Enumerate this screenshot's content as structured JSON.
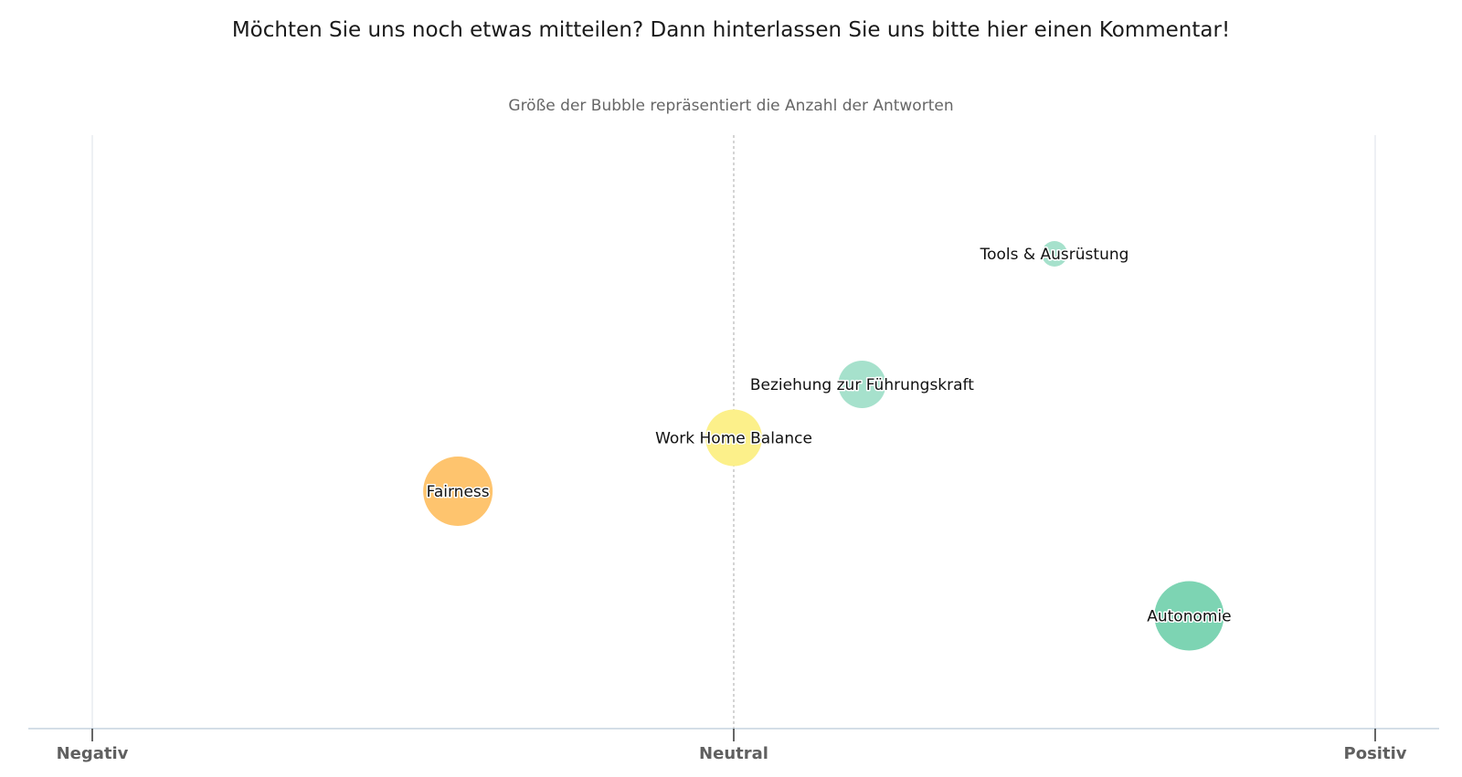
{
  "title": "Möchten Sie uns noch etwas mitteilen? Dann hinterlassen Sie uns bitte hier einen Kommentar!",
  "subtitle": "Größe der Bubble repräsentiert die Anzahl der Antworten",
  "chart_data": {
    "type": "scatter",
    "x_ticks": [
      "Negativ",
      "Neutral",
      "Positiv"
    ],
    "xlim": [
      -1,
      1
    ],
    "ylim": [
      0,
      1
    ],
    "grid": false,
    "points": [
      {
        "label": "Tools & Ausrüstung",
        "x": 0.5,
        "y": 0.8,
        "size": 1,
        "color": "#a6e1cc"
      },
      {
        "label": "Beziehung zur Führungskraft",
        "x": 0.2,
        "y": 0.58,
        "size": 2,
        "color": "#a6e1cc"
      },
      {
        "label": "Work Home Balance",
        "x": 0.0,
        "y": 0.49,
        "size": 3,
        "color": "#fcf08a"
      },
      {
        "label": "Fairness",
        "x": -0.43,
        "y": 0.4,
        "size": 5,
        "color": "#fec46e"
      },
      {
        "label": "Autonomie",
        "x": 0.71,
        "y": 0.19,
        "size": 5,
        "color": "#7dd4b3"
      }
    ]
  }
}
